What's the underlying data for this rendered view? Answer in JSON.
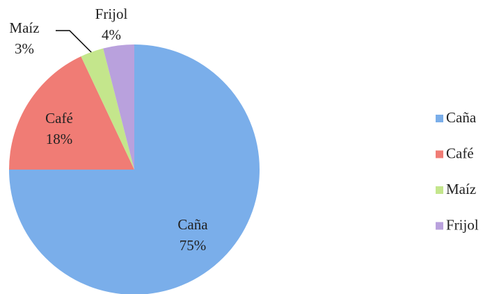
{
  "chart_data": {
    "type": "pie",
    "categories": [
      "Caña",
      "Café",
      "Maíz",
      "Frijol"
    ],
    "values": [
      75,
      18,
      3,
      4
    ],
    "value_labels": [
      "75%",
      "18%",
      "3%",
      "4%"
    ],
    "colors": [
      "#7aaeea",
      "#f07c75",
      "#c4e68c",
      "#b9a1dd"
    ],
    "legend": "right"
  }
}
